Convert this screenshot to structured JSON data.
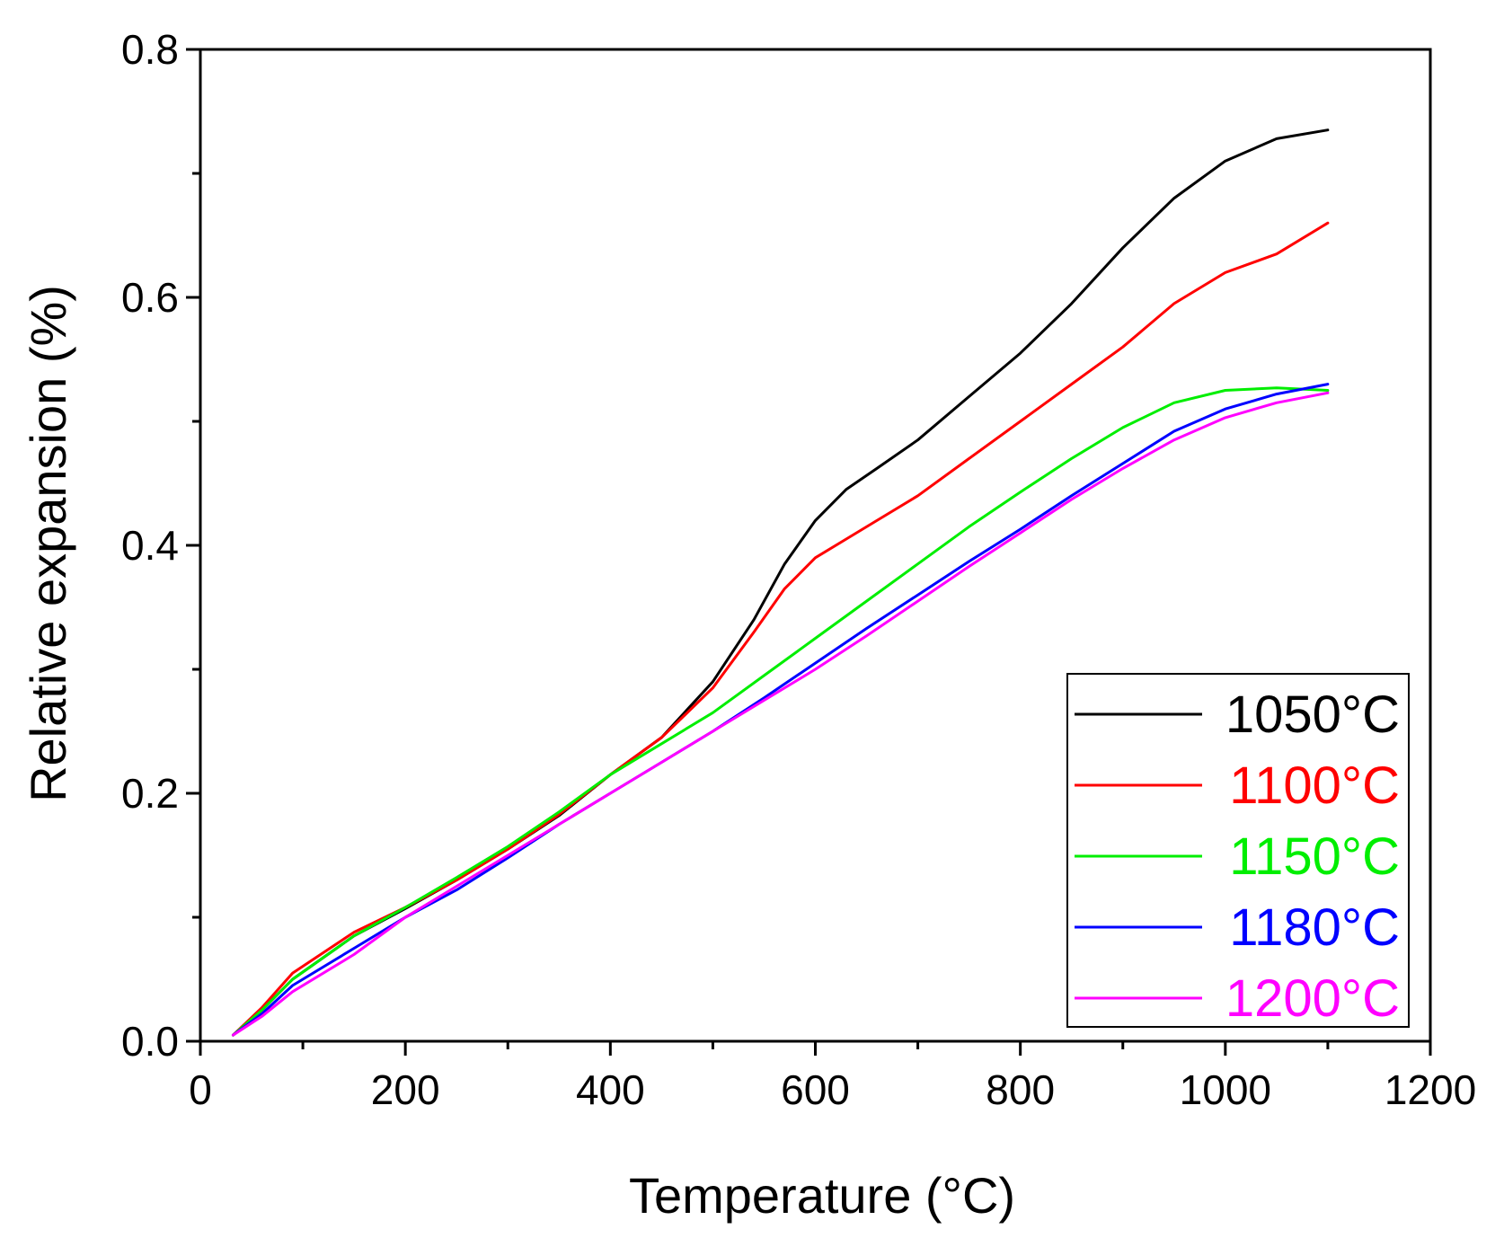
{
  "chart_data": {
    "type": "line",
    "title": "",
    "xlabel": "Temperature (°C)",
    "ylabel": "Relative expansion (%)",
    "xlim": [
      0,
      1200
    ],
    "ylim": [
      0,
      0.8
    ],
    "xticks": [
      0,
      200,
      400,
      600,
      800,
      1000,
      1200
    ],
    "xtick_labels": [
      "0",
      "200",
      "400",
      "600",
      "800",
      "1000",
      "1200"
    ],
    "yticks": [
      0,
      0.2,
      0.4,
      0.6,
      0.8
    ],
    "ytick_labels": [
      "0.0",
      "0.2",
      "0.4",
      "0.6",
      "0.8"
    ],
    "grid": false,
    "legend_position": "bottom-right",
    "series": [
      {
        "name": "1050°C",
        "color": "#000000",
        "x": [
          32,
          60,
          90,
          150,
          200,
          250,
          300,
          350,
          400,
          450,
          500,
          540,
          570,
          600,
          630,
          660,
          700,
          750,
          800,
          850,
          900,
          950,
          1000,
          1050,
          1100
        ],
        "y": [
          0.005,
          0.025,
          0.05,
          0.085,
          0.107,
          0.13,
          0.155,
          0.182,
          0.215,
          0.245,
          0.29,
          0.34,
          0.385,
          0.42,
          0.445,
          0.462,
          0.485,
          0.52,
          0.555,
          0.595,
          0.64,
          0.68,
          0.71,
          0.728,
          0.735
        ]
      },
      {
        "name": "1100°C",
        "color": "#ff0000",
        "x": [
          32,
          60,
          90,
          150,
          200,
          250,
          300,
          350,
          400,
          450,
          500,
          540,
          570,
          600,
          630,
          660,
          700,
          750,
          800,
          850,
          900,
          950,
          1000,
          1050,
          1100
        ],
        "y": [
          0.005,
          0.027,
          0.055,
          0.088,
          0.108,
          0.13,
          0.155,
          0.183,
          0.215,
          0.245,
          0.285,
          0.33,
          0.365,
          0.39,
          0.405,
          0.42,
          0.44,
          0.47,
          0.5,
          0.53,
          0.56,
          0.595,
          0.62,
          0.635,
          0.66
        ]
      },
      {
        "name": "1150°C",
        "color": "#00ee00",
        "x": [
          32,
          60,
          90,
          150,
          200,
          250,
          300,
          350,
          400,
          450,
          500,
          550,
          600,
          650,
          700,
          750,
          800,
          850,
          900,
          950,
          1000,
          1050,
          1100
        ],
        "y": [
          0.005,
          0.025,
          0.05,
          0.085,
          0.108,
          0.132,
          0.157,
          0.185,
          0.215,
          0.24,
          0.265,
          0.295,
          0.325,
          0.355,
          0.385,
          0.415,
          0.443,
          0.47,
          0.495,
          0.515,
          0.525,
          0.527,
          0.525
        ]
      },
      {
        "name": "1180°C",
        "color": "#0000ff",
        "x": [
          32,
          60,
          90,
          150,
          200,
          250,
          300,
          350,
          400,
          450,
          500,
          550,
          600,
          650,
          700,
          750,
          800,
          850,
          900,
          950,
          1000,
          1050,
          1100
        ],
        "y": [
          0.005,
          0.022,
          0.045,
          0.075,
          0.1,
          0.122,
          0.148,
          0.175,
          0.2,
          0.225,
          0.25,
          0.277,
          0.305,
          0.333,
          0.36,
          0.387,
          0.413,
          0.44,
          0.466,
          0.492,
          0.51,
          0.522,
          0.53
        ]
      },
      {
        "name": "1200°C",
        "color": "#ff00ff",
        "x": [
          32,
          60,
          90,
          150,
          200,
          250,
          300,
          350,
          400,
          450,
          500,
          550,
          600,
          650,
          700,
          750,
          800,
          850,
          900,
          950,
          1000,
          1050,
          1100
        ],
        "y": [
          0.005,
          0.02,
          0.04,
          0.07,
          0.1,
          0.125,
          0.15,
          0.175,
          0.2,
          0.225,
          0.25,
          0.275,
          0.3,
          0.327,
          0.355,
          0.383,
          0.41,
          0.437,
          0.462,
          0.485,
          0.503,
          0.515,
          0.523
        ]
      }
    ]
  }
}
